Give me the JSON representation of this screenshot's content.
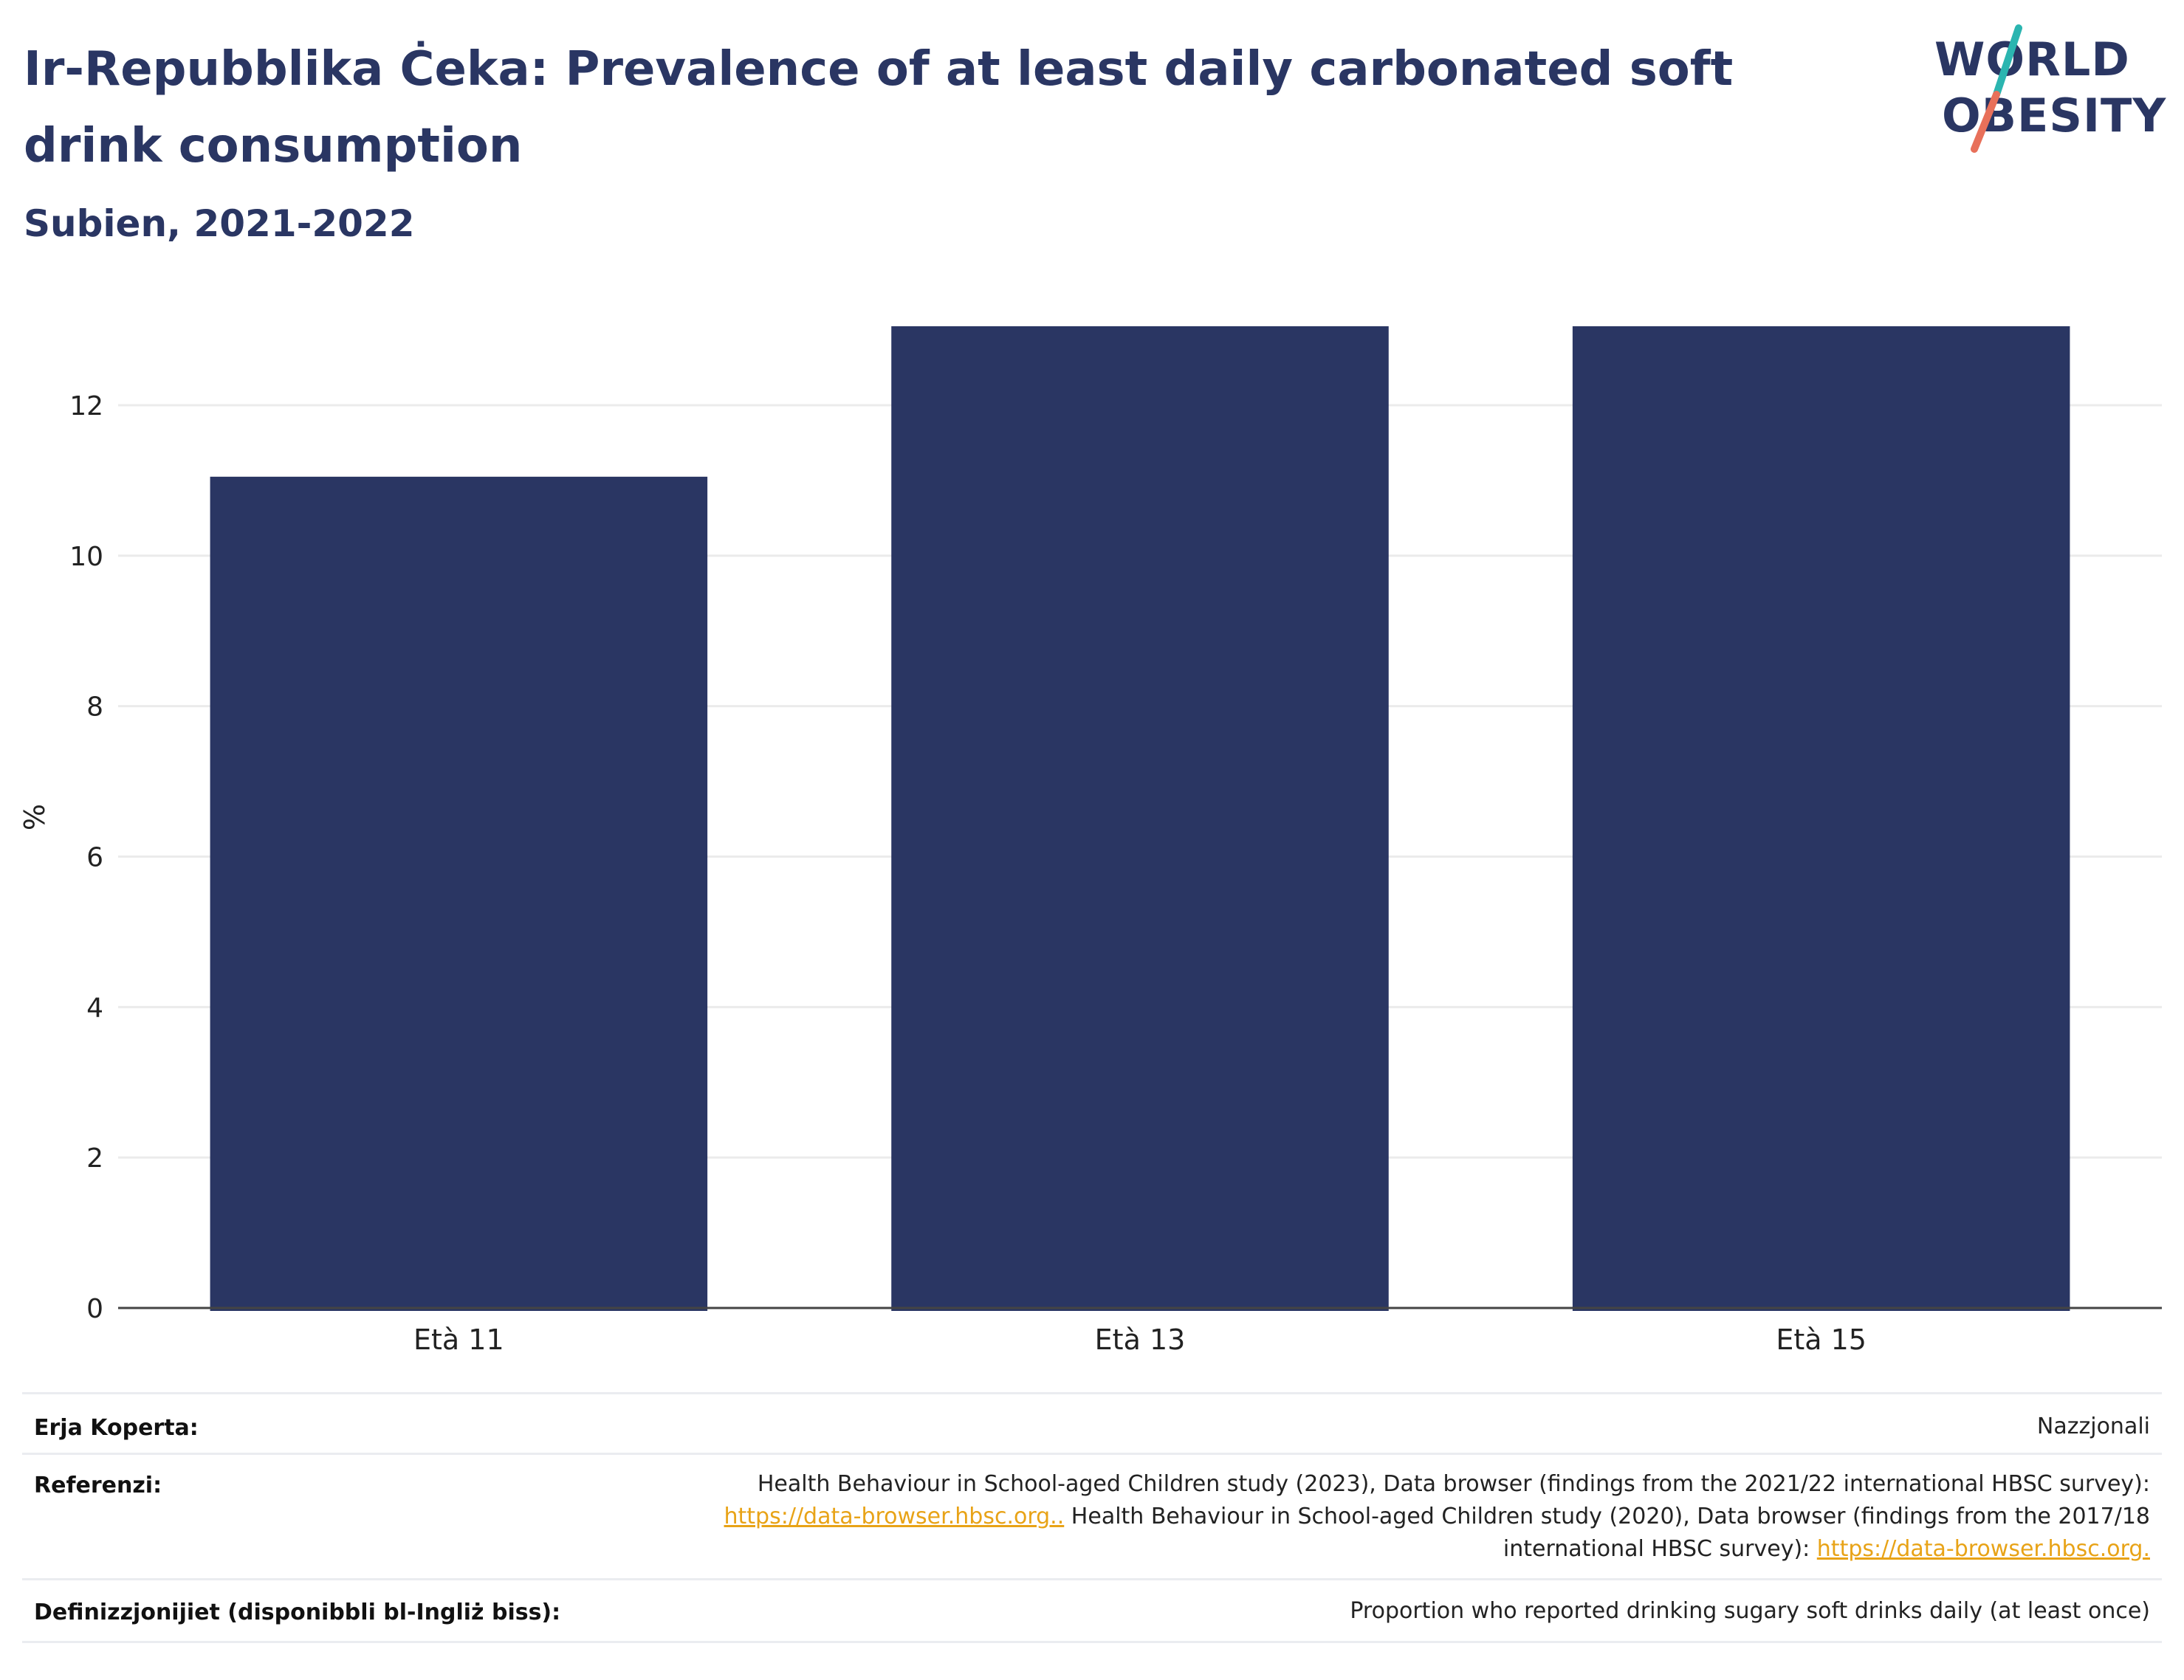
{
  "header": {
    "title": "Ir-Repubblika Ċeka: Prevalence of at least daily carbonated soft drink consumption",
    "subtitle": "Subien, 2021-2022"
  },
  "logo": {
    "line1": "WORLD",
    "line2": "OBESITY",
    "colors": {
      "text": "#2a3663",
      "slash_top": "#2bb5b0",
      "slash_bottom": "#e8705a"
    }
  },
  "chart_data": {
    "type": "bar",
    "categories": [
      "Età 11",
      "Età 13",
      "Età 15"
    ],
    "values": [
      11.05,
      13.05,
      13.05
    ],
    "ylabel": "%",
    "yticks": [
      0,
      2,
      4,
      6,
      8,
      10,
      12
    ],
    "ylim": [
      0,
      13.05
    ],
    "grid": true,
    "bar_color": "#2a3663"
  },
  "footer": {
    "coverage": {
      "label": "Erja Koperta:",
      "value": "Nazzjonali"
    },
    "references": {
      "label": "Referenzi:",
      "line1": "Health Behaviour in School-aged Children study (2023), Data browser (findings from the 2021/22 international HBSC survey):",
      "link1": "https://data-browser.hbsc.org..",
      "line2": " Health Behaviour in School-aged Children study (2020), Data browser (findings from the 2017/18",
      "line3": "international HBSC survey): ",
      "link2": "https://data-browser.hbsc.org."
    },
    "definitions": {
      "label": "Definizzjonijiet (disponibbli bl-Ingliż biss):",
      "value": "Proportion who reported drinking sugary soft drinks daily (at least once)"
    }
  }
}
